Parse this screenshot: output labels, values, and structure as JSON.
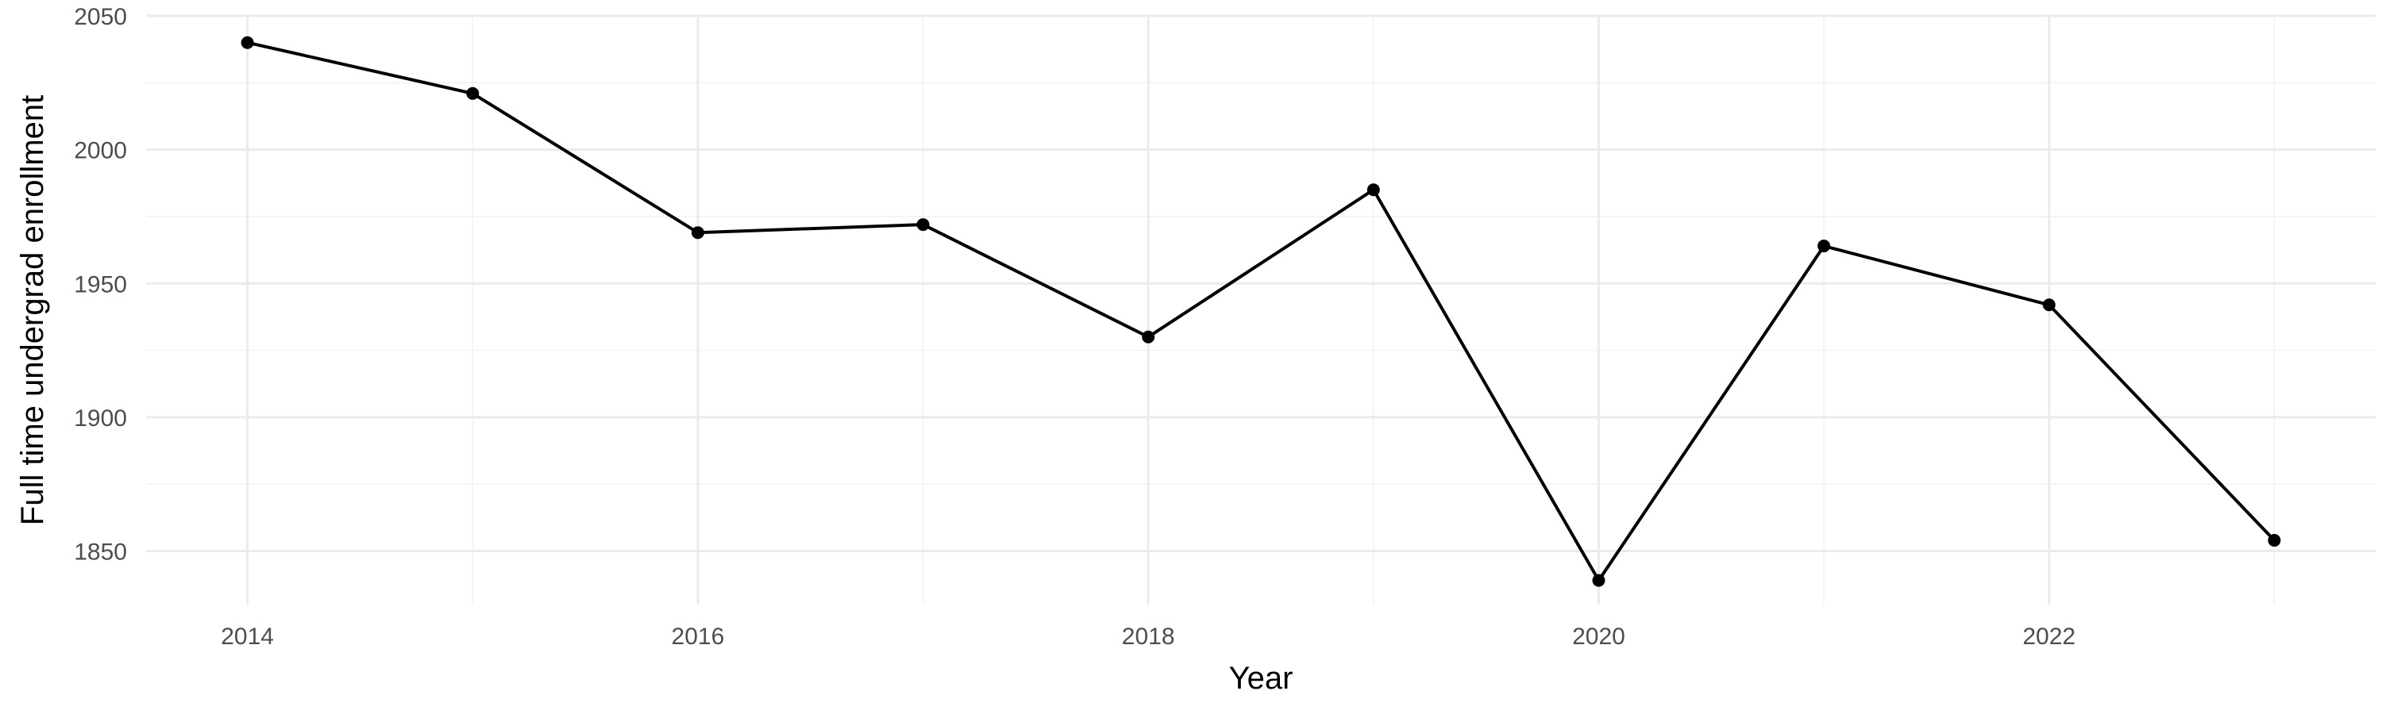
{
  "chart_data": {
    "type": "line",
    "title": "",
    "xlabel": "Year",
    "ylabel": "Full time undergrad enrollment",
    "x": [
      2014,
      2015,
      2016,
      2017,
      2018,
      2019,
      2020,
      2021,
      2022,
      2023
    ],
    "series": [
      {
        "values": [
          2040,
          2021,
          1969,
          1972,
          1930,
          1985,
          1839,
          1964,
          1942,
          1854
        ]
      }
    ],
    "xlim": [
      2013.55,
      2023.45
    ],
    "ylim": [
      1830,
      2050
    ],
    "x_ticks": [
      2014,
      2016,
      2018,
      2020,
      2022
    ],
    "x_tick_labels": [
      "2014",
      "2016",
      "2018",
      "2020",
      "2022"
    ],
    "y_ticks": [
      1850,
      1900,
      1950,
      2000,
      2050
    ],
    "y_tick_labels": [
      "1850",
      "1900",
      "1950",
      "2000",
      "2050"
    ],
    "grid": true,
    "line_color": "#000000",
    "grid_color": "#ebebeb"
  }
}
